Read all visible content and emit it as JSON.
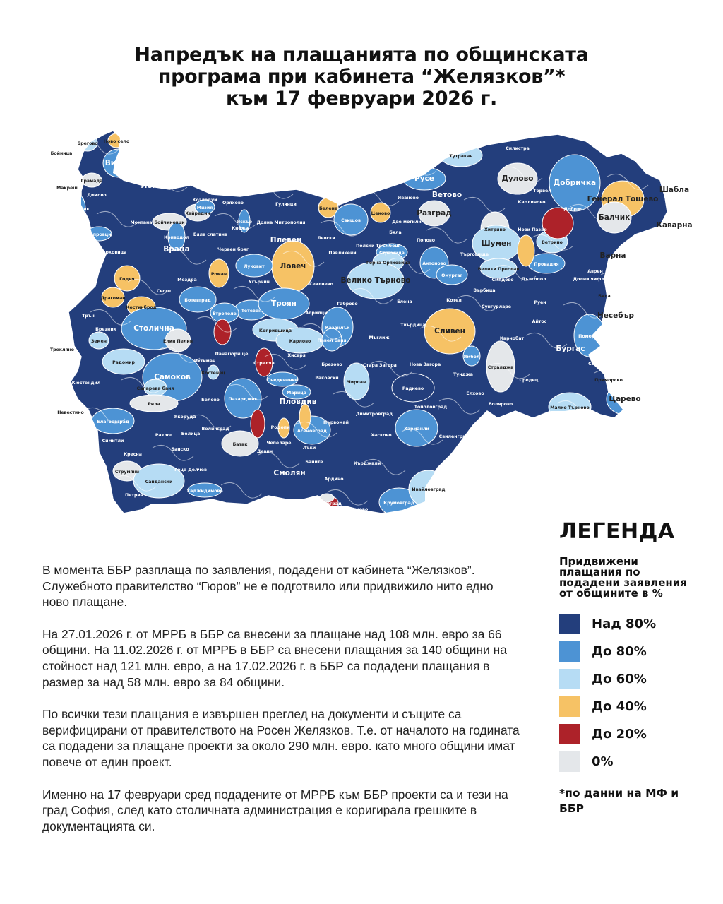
{
  "title": {
    "line1": "Напредък на плащанията по общинската",
    "line2": "програма при кабинета “Желязков”*",
    "line3": "към 17 февруари 2026 г."
  },
  "colors": {
    "over80": "#233e7c",
    "to80": "#4d93d4",
    "to60": "#b6dcf4",
    "to40": "#f6c265",
    "to20": "#ad2229",
    "zero": "#e4e7ea"
  },
  "legend": {
    "title": "ЛЕГЕНДА",
    "subtitle": "Придвижени плащания по подадени заявления от общините в %",
    "items": [
      {
        "level": "over80",
        "label": "Над 80%"
      },
      {
        "level": "to80",
        "label": "До 80%"
      },
      {
        "level": "to60",
        "label": "До 60%"
      },
      {
        "level": "to40",
        "label": "До 40%"
      },
      {
        "level": "to20",
        "label": "До 20%"
      },
      {
        "level": "zero",
        "label": "0%"
      }
    ],
    "note": "*по данни на МФ и ББР"
  },
  "text": {
    "p1": "В момента ББР разплаща по заявления, подадени от кабинета “Желязков”. Служебното правителство “Гюров” не е подготвило или придвижило нито едно ново плащане.",
    "p2": "На 27.01.2026 г. от МРРБ в ББР са внесени за плащане над 108 млн. евро за 66 общини. На 11.02.2026 г. от МРРБ в ББР са внесени плащания за 140 общини на стойност над 121 млн. евро, а на 17.02.2026 г. в ББР са подадени плащания в размер за над 58 млн. евро за 84 общини.",
    "p3": "По всички тези плащания е извършен преглед на документи и същите са верифицирани от правителството на Росен Желязков. Т.е. от началото на годината са подадени за плащане проекти за около 290 млн. евро. като много общини имат повече от един проект.",
    "p4": "Именно на 17 февруари сред подадените от МРРБ към ББР проекти са и тези на град София, след като столичната администрация е коригирала грешките в документацията си."
  },
  "map": {
    "default_level": "over80",
    "municipalities": [
      {
        "name": "Брегово",
        "level": "to60"
      },
      {
        "name": "Ново село",
        "level": "to40"
      },
      {
        "name": "Бойница",
        "level": "over80"
      },
      {
        "name": "Видин",
        "level": "to80"
      },
      {
        "name": "Кула",
        "level": "over80"
      },
      {
        "name": "Грамада",
        "level": "zero"
      },
      {
        "name": "Макреш",
        "level": "zero"
      },
      {
        "name": "Белоградчик",
        "level": "to80"
      },
      {
        "name": "Димово",
        "level": "over80"
      },
      {
        "name": "Лом",
        "level": "over80"
      },
      {
        "name": "Чупрене",
        "level": "over80"
      },
      {
        "name": "Монтана",
        "level": "over80"
      },
      {
        "name": "Чипровци",
        "level": "to80"
      },
      {
        "name": "Берковица",
        "level": "over80"
      },
      {
        "name": "Козлодуй",
        "level": "over80"
      },
      {
        "name": "Хайредин",
        "level": "zero"
      },
      {
        "name": "Бойчиновци",
        "level": "zero"
      },
      {
        "name": "Мизия",
        "level": "to80"
      },
      {
        "name": "Криводол",
        "level": "to80"
      },
      {
        "name": "Враца",
        "level": "over80"
      },
      {
        "name": "Оряхово",
        "level": "over80"
      },
      {
        "name": "Бяла слатина",
        "level": "over80"
      },
      {
        "name": "Кнежа",
        "level": "over80"
      },
      {
        "name": "Искър",
        "level": "to80"
      },
      {
        "name": "Долна Митрополия",
        "level": "over80"
      },
      {
        "name": "Гулянци",
        "level": "over80"
      },
      {
        "name": "Плевен",
        "level": "over80"
      },
      {
        "name": "Червен бряг",
        "level": "over80"
      },
      {
        "name": "Белене",
        "level": "to40"
      },
      {
        "name": "Левски",
        "level": "over80"
      },
      {
        "name": "Ловеч",
        "level": "to40"
      },
      {
        "name": "Роман",
        "level": "to40"
      },
      {
        "name": "Луковит",
        "level": "to80"
      },
      {
        "name": "Мездра",
        "level": "over80"
      },
      {
        "name": "Годеч",
        "level": "to40"
      },
      {
        "name": "Своге",
        "level": "over80"
      },
      {
        "name": "Драгоман",
        "level": "to40"
      },
      {
        "name": "Костинброд",
        "level": "to40"
      },
      {
        "name": "Ботевград",
        "level": "to80"
      },
      {
        "name": "Угърчин",
        "level": "over80"
      },
      {
        "name": "Севлиево",
        "level": "over80"
      },
      {
        "name": "Тетевен",
        "level": "to80"
      },
      {
        "name": "Етрополе",
        "level": "to80"
      },
      {
        "name": "Троян",
        "level": "to80"
      },
      {
        "name": "Априлци",
        "level": "over80"
      },
      {
        "name": "Габрово",
        "level": "over80"
      },
      {
        "name": "Трън",
        "level": "over80"
      },
      {
        "name": "Брезник",
        "level": "over80"
      },
      {
        "name": "Столична",
        "level": "to80"
      },
      {
        "name": "Копривщица",
        "level": "to60"
      },
      {
        "name": "Карлово",
        "level": "to60"
      },
      {
        "name": "Елин Пелин",
        "level": "zero"
      },
      {
        "name": "Земен",
        "level": "to60"
      },
      {
        "name": "Трекляно",
        "level": "zero"
      },
      {
        "name": "Радомир",
        "level": "to60"
      },
      {
        "name": "Ихтиман",
        "level": "over80"
      },
      {
        "name": "Панагюрище",
        "level": "over80"
      },
      {
        "name": "Стрелча",
        "level": "to20"
      },
      {
        "name": "Хисаря",
        "level": "over80"
      },
      {
        "name": "Казанлък",
        "level": "to80"
      },
      {
        "name": "Павел баня",
        "level": "to80"
      },
      {
        "name": "Мъглиж",
        "level": "over80"
      },
      {
        "name": "Твърдица",
        "level": "over80"
      },
      {
        "name": "Сливен",
        "level": "to40"
      },
      {
        "name": "Самоков",
        "level": "to80"
      },
      {
        "name": "Костенец",
        "level": "to60"
      },
      {
        "name": "Кюстендил",
        "level": "over80"
      },
      {
        "name": "Сапарева баня",
        "level": "to60"
      },
      {
        "name": "Белово",
        "level": "over80"
      },
      {
        "name": "Пазарджик",
        "level": "to80"
      },
      {
        "name": "Съединение",
        "level": "to80"
      },
      {
        "name": "Брезово",
        "level": "over80"
      },
      {
        "name": "Раковски",
        "level": "over80"
      },
      {
        "name": "Марица",
        "level": "to80"
      },
      {
        "name": "Пловдив",
        "level": "over80"
      },
      {
        "name": "Чирпан",
        "level": "to60"
      },
      {
        "name": "Стара Загора",
        "level": "over80"
      },
      {
        "name": "Нова Загора",
        "level": "over80"
      },
      {
        "name": "Ямбол",
        "level": "to80"
      },
      {
        "name": "Тунджа",
        "level": "over80"
      },
      {
        "name": "Стралджа",
        "level": "zero"
      },
      {
        "name": "Средец",
        "level": "over80"
      },
      {
        "name": "Карнобат",
        "level": "over80"
      },
      {
        "name": "Айтос",
        "level": "over80"
      },
      {
        "name": "Бургас",
        "level": "over80"
      },
      {
        "name": "Поморие",
        "level": "to80"
      },
      {
        "name": "Созопол",
        "level": "over80"
      },
      {
        "name": "Приморско",
        "level": "over80"
      },
      {
        "name": "Царево",
        "level": "to80"
      },
      {
        "name": "Малко Търново",
        "level": "to60"
      },
      {
        "name": "Невестино",
        "level": "zero"
      },
      {
        "name": "Рила",
        "level": "zero"
      },
      {
        "name": "Благоевград",
        "level": "to80"
      },
      {
        "name": "Якоруда",
        "level": "over80"
      },
      {
        "name": "Велинград",
        "level": "over80"
      },
      {
        "name": "Батак",
        "level": "zero"
      },
      {
        "name": "Родопи",
        "level": "over80"
      },
      {
        "name": "Асеновград",
        "level": "to80"
      },
      {
        "name": "Първомай",
        "level": "over80"
      },
      {
        "name": "Димитровград",
        "level": "over80"
      },
      {
        "name": "Хасково",
        "level": "over80"
      },
      {
        "name": "Харманли",
        "level": "to80"
      },
      {
        "name": "Тополовград",
        "level": "over80"
      },
      {
        "name": "Раднево",
        "level": "over80"
      },
      {
        "name": "Елхово",
        "level": "over80"
      },
      {
        "name": "Болярово",
        "level": "over80"
      },
      {
        "name": "Свиленград",
        "level": "over80"
      },
      {
        "name": "Симитли",
        "level": "over80"
      },
      {
        "name": "Разлог",
        "level": "over80"
      },
      {
        "name": "Белица",
        "level": "over80"
      },
      {
        "name": "Банско",
        "level": "over80"
      },
      {
        "name": "Кресна",
        "level": "over80"
      },
      {
        "name": "Гоце Делчев",
        "level": "over80"
      },
      {
        "name": "Струмяни",
        "level": "zero"
      },
      {
        "name": "Сандански",
        "level": "to60"
      },
      {
        "name": "Хаджидимово",
        "level": "to80"
      },
      {
        "name": "Петрич",
        "level": "over80"
      },
      {
        "name": "Девин",
        "level": "over80"
      },
      {
        "name": "Чепеларе",
        "level": "over80"
      },
      {
        "name": "Лъки",
        "level": "over80"
      },
      {
        "name": "Баните",
        "level": "over80"
      },
      {
        "name": "Смолян",
        "level": "over80"
      },
      {
        "name": "Ардино",
        "level": "over80"
      },
      {
        "name": "Кърджали",
        "level": "over80"
      },
      {
        "name": "Крумовград",
        "level": "to80"
      },
      {
        "name": "Ивайловград",
        "level": "to60"
      },
      {
        "name": "Кирково",
        "level": "over80"
      },
      {
        "name": "Златоград",
        "level": "to20"
      },
      {
        "name": "Тутракан",
        "level": "to60"
      },
      {
        "name": "Силистра",
        "level": "over80"
      },
      {
        "name": "Русе",
        "level": "to80"
      },
      {
        "name": "Дулово",
        "level": "zero"
      },
      {
        "name": "Ветово",
        "level": "over80"
      },
      {
        "name": "Разград",
        "level": "zero"
      },
      {
        "name": "Иваново",
        "level": "over80"
      },
      {
        "name": "Ценово",
        "level": "to40"
      },
      {
        "name": "Свищов",
        "level": "to80"
      },
      {
        "name": "Две могили",
        "level": "over80"
      },
      {
        "name": "Бяла",
        "level": "over80"
      },
      {
        "name": "Попово",
        "level": "over80"
      },
      {
        "name": "Полски Тръмбеш",
        "level": "over80"
      },
      {
        "name": "Павликени",
        "level": "over80"
      },
      {
        "name": "Стражица",
        "level": "to80"
      },
      {
        "name": "Горна Оряховица",
        "level": "to60"
      },
      {
        "name": "Антоново",
        "level": "to80"
      },
      {
        "name": "Омуртаг",
        "level": "to80"
      },
      {
        "name": "Велико Търново",
        "level": "to60"
      },
      {
        "name": "Търговище",
        "level": "over80"
      },
      {
        "name": "Хитрино",
        "level": "zero"
      },
      {
        "name": "Шумен",
        "level": "to60"
      },
      {
        "name": "Велики Преслав",
        "level": "to60"
      },
      {
        "name": "Нови Пазар",
        "level": "over80"
      },
      {
        "name": "Каолиново",
        "level": "over80"
      },
      {
        "name": "Тервел",
        "level": "over80"
      },
      {
        "name": "Добричка",
        "level": "to80"
      },
      {
        "name": "Добрич",
        "level": "to80"
      },
      {
        "name": "Генерал Тошево",
        "level": "to40"
      },
      {
        "name": "Шабла",
        "level": "over80"
      },
      {
        "name": "Балчик",
        "level": "zero"
      },
      {
        "name": "Каварна",
        "level": "over80"
      },
      {
        "name": "Ветрино",
        "level": "to60"
      },
      {
        "name": "Провадия",
        "level": "to80"
      },
      {
        "name": "Варна",
        "level": "over80"
      },
      {
        "name": "Аврен",
        "level": "over80"
      },
      {
        "name": "Дългопол",
        "level": "over80"
      },
      {
        "name": "Смядово",
        "level": "over80"
      },
      {
        "name": "Долни чифлик",
        "level": "over80"
      },
      {
        "name": "Бяла",
        "level": "over80"
      },
      {
        "name": "Върбица",
        "level": "over80"
      },
      {
        "name": "Котел",
        "level": "over80"
      },
      {
        "name": "Елена",
        "level": "over80"
      },
      {
        "name": "Сунгурларе",
        "level": "over80"
      },
      {
        "name": "Руен",
        "level": "over80"
      },
      {
        "name": "Несебър",
        "level": "over80"
      }
    ],
    "unlabeled_regions": [
      {
        "level": "to20"
      },
      {
        "level": "to40"
      },
      {
        "level": "to20"
      },
      {
        "level": "to40"
      },
      {
        "level": "to40"
      },
      {
        "level": "to20"
      },
      {
        "level": "zero"
      },
      {
        "level": "zero"
      },
      {
        "level": "zero"
      }
    ]
  }
}
